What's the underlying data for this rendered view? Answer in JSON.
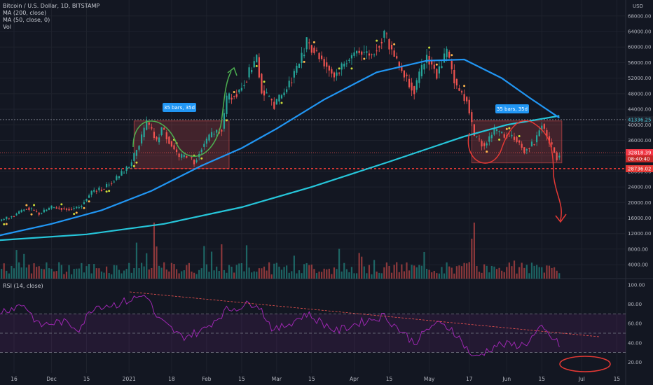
{
  "header": {
    "legend": [
      "Bitcoin / U.S. Dollar, 1D, BITSTAMP",
      "MA (200, close)",
      "MA (50, close, 0)",
      "Vol"
    ],
    "currency": "USD",
    "rsi_label": "RSI (14, close)"
  },
  "colors": {
    "background": "#131722",
    "up": "#26a69a",
    "down": "#ef5350",
    "ma50": "#2196f3",
    "ma200": "#26c6da",
    "rsi": "#9c27b0",
    "annotation_green": "#4caf50",
    "annotation_red": "#e53935",
    "grid": "#1e222d"
  },
  "chart_data": [
    {
      "type": "candlestick",
      "title": "Bitcoin / U.S. Dollar, 1D, BITSTAMP",
      "ylabel": "USD",
      "y_ticks": [
        "68000.00",
        "64000.00",
        "60000.00",
        "56000.00",
        "52000.00",
        "48000.00",
        "44000.00",
        "40000.00",
        "36000.00",
        "32000.00",
        "28000.00",
        "24000.00",
        "20000.00",
        "16000.00",
        "12000.00",
        "8000.00",
        "4000.00"
      ],
      "x_ticks": [
        "16",
        "Dec",
        "15",
        "2021",
        "18",
        "Feb",
        "15",
        "Mar",
        "15",
        "Apr",
        "15",
        "May",
        "17",
        "Jun",
        "15",
        "Jul",
        "15"
      ],
      "price_labels": [
        {
          "text": "41336.25",
          "value": 41336.25
        },
        {
          "text": "32818.39",
          "value": 32818.39
        },
        {
          "text": "08:40:40",
          "value": 31900
        },
        {
          "text": "28736.02",
          "value": 28736.02
        }
      ],
      "annotations": [
        "35 bars, 35d",
        "35 bars, 35d"
      ],
      "close_series": [
        {
          "date": "2020-11-10",
          "close": 15300
        },
        {
          "date": "2020-11-16",
          "close": 16700
        },
        {
          "date": "2020-11-21",
          "close": 18700
        },
        {
          "date": "2020-11-26",
          "close": 17100
        },
        {
          "date": "2020-12-01",
          "close": 18800
        },
        {
          "date": "2020-12-08",
          "close": 18300
        },
        {
          "date": "2020-12-12",
          "close": 18800
        },
        {
          "date": "2020-12-17",
          "close": 22800
        },
        {
          "date": "2020-12-21",
          "close": 23500
        },
        {
          "date": "2020-12-27",
          "close": 26300
        },
        {
          "date": "2021-01-01",
          "close": 29400
        },
        {
          "date": "2021-01-03",
          "close": 32000
        },
        {
          "date": "2021-01-06",
          "close": 36800
        },
        {
          "date": "2021-01-08",
          "close": 40600
        },
        {
          "date": "2021-01-10",
          "close": 38200
        },
        {
          "date": "2021-01-12",
          "close": 35500
        },
        {
          "date": "2021-01-14",
          "close": 39200
        },
        {
          "date": "2021-01-17",
          "close": 35800
        },
        {
          "date": "2021-01-21",
          "close": 31500
        },
        {
          "date": "2021-01-24",
          "close": 32200
        },
        {
          "date": "2021-01-27",
          "close": 30400
        },
        {
          "date": "2021-01-30",
          "close": 34300
        },
        {
          "date": "2021-02-03",
          "close": 37600
        },
        {
          "date": "2021-02-07",
          "close": 39000
        },
        {
          "date": "2021-02-09",
          "close": 46500
        },
        {
          "date": "2021-02-14",
          "close": 48800
        },
        {
          "date": "2021-02-17",
          "close": 52200
        },
        {
          "date": "2021-02-21",
          "close": 57400
        },
        {
          "date": "2021-02-23",
          "close": 48800
        },
        {
          "date": "2021-02-28",
          "close": 45200
        },
        {
          "date": "2021-03-04",
          "close": 48400
        },
        {
          "date": "2021-03-10",
          "close": 55900
        },
        {
          "date": "2021-03-13",
          "close": 61200
        },
        {
          "date": "2021-03-18",
          "close": 57800
        },
        {
          "date": "2021-03-24",
          "close": 52600
        },
        {
          "date": "2021-03-28",
          "close": 55800
        },
        {
          "date": "2021-04-02",
          "close": 59000
        },
        {
          "date": "2021-04-08",
          "close": 58000
        },
        {
          "date": "2021-04-13",
          "close": 63500
        },
        {
          "date": "2021-04-18",
          "close": 56200
        },
        {
          "date": "2021-04-22",
          "close": 51800
        },
        {
          "date": "2021-04-25",
          "close": 49000
        },
        {
          "date": "2021-04-30",
          "close": 57700
        },
        {
          "date": "2021-05-04",
          "close": 53200
        },
        {
          "date": "2021-05-08",
          "close": 58800
        },
        {
          "date": "2021-05-12",
          "close": 49400
        },
        {
          "date": "2021-05-16",
          "close": 46400
        },
        {
          "date": "2021-05-19",
          "close": 37000
        },
        {
          "date": "2021-05-23",
          "close": 34700
        },
        {
          "date": "2021-05-27",
          "close": 38400
        },
        {
          "date": "2021-05-31",
          "close": 37300
        },
        {
          "date": "2021-06-04",
          "close": 36800
        },
        {
          "date": "2021-06-08",
          "close": 33400
        },
        {
          "date": "2021-06-12",
          "close": 35500
        },
        {
          "date": "2021-06-15",
          "close": 40200
        },
        {
          "date": "2021-06-18",
          "close": 35500
        },
        {
          "date": "2021-06-21",
          "close": 31600
        },
        {
          "date": "2021-06-22",
          "close": 32818
        }
      ],
      "ma50": [
        {
          "date": "2020-11-10",
          "value": 11500
        },
        {
          "date": "2020-12-01",
          "value": 14500
        },
        {
          "date": "2020-12-21",
          "value": 18000
        },
        {
          "date": "2021-01-10",
          "value": 23000
        },
        {
          "date": "2021-01-30",
          "value": 29500
        },
        {
          "date": "2021-02-15",
          "value": 34000
        },
        {
          "date": "2021-03-01",
          "value": 39000
        },
        {
          "date": "2021-03-20",
          "value": 46500
        },
        {
          "date": "2021-04-10",
          "value": 53500
        },
        {
          "date": "2021-04-30",
          "value": 56500
        },
        {
          "date": "2021-05-15",
          "value": 56800
        },
        {
          "date": "2021-05-30",
          "value": 52000
        },
        {
          "date": "2021-06-10",
          "value": 47000
        },
        {
          "date": "2021-06-22",
          "value": 41800
        }
      ],
      "ma200": [
        {
          "date": "2020-11-10",
          "value": 10300
        },
        {
          "date": "2020-12-15",
          "value": 11800
        },
        {
          "date": "2021-01-15",
          "value": 14500
        },
        {
          "date": "2021-02-15",
          "value": 18800
        },
        {
          "date": "2021-03-15",
          "value": 24000
        },
        {
          "date": "2021-04-15",
          "value": 30500
        },
        {
          "date": "2021-05-15",
          "value": 37000
        },
        {
          "date": "2021-06-01",
          "value": 40000
        },
        {
          "date": "2021-06-22",
          "value": 42300
        }
      ]
    },
    {
      "type": "line",
      "title": "RSI (14, close)",
      "y_ticks": [
        "100.00",
        "80.00",
        "60.00",
        "40.00",
        "20.00"
      ],
      "bands": [
        30,
        50,
        70
      ],
      "series": [
        {
          "values": [
            {
              "date": "2020-11-10",
              "rsi": 72
            },
            {
              "date": "2020-11-20",
              "rsi": 80
            },
            {
              "date": "2020-11-26",
              "rsi": 58
            },
            {
              "date": "2020-12-05",
              "rsi": 62
            },
            {
              "date": "2020-12-12",
              "rsi": 55
            },
            {
              "date": "2020-12-18",
              "rsi": 78
            },
            {
              "date": "2020-12-27",
              "rsi": 80
            },
            {
              "date": "2021-01-08",
              "rsi": 90
            },
            {
              "date": "2021-01-12",
              "rsi": 66
            },
            {
              "date": "2021-01-22",
              "rsi": 46
            },
            {
              "date": "2021-01-30",
              "rsi": 52
            },
            {
              "date": "2021-02-09",
              "rsi": 74
            },
            {
              "date": "2021-02-21",
              "rsi": 82
            },
            {
              "date": "2021-02-28",
              "rsi": 52
            },
            {
              "date": "2021-03-13",
              "rsi": 70
            },
            {
              "date": "2021-03-25",
              "rsi": 52
            },
            {
              "date": "2021-04-02",
              "rsi": 60
            },
            {
              "date": "2021-04-13",
              "rsi": 68
            },
            {
              "date": "2021-04-25",
              "rsi": 40
            },
            {
              "date": "2021-05-03",
              "rsi": 60
            },
            {
              "date": "2021-05-10",
              "rsi": 55
            },
            {
              "date": "2021-05-19",
              "rsi": 24
            },
            {
              "date": "2021-05-28",
              "rsi": 38
            },
            {
              "date": "2021-06-08",
              "rsi": 38
            },
            {
              "date": "2021-06-15",
              "rsi": 55
            },
            {
              "date": "2021-06-22",
              "rsi": 38
            }
          ]
        }
      ]
    }
  ]
}
